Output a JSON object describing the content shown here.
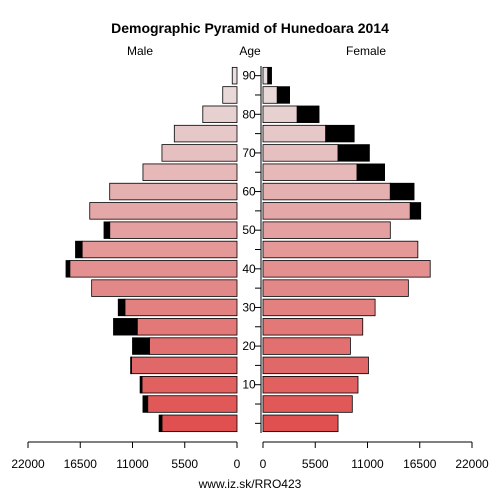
{
  "title": "Demographic Pyramid of Hunedoara 2014",
  "header": {
    "male": "Male",
    "age": "Age",
    "female": "Female"
  },
  "footer": "www.iz.sk/RRO423",
  "chart_data": {
    "type": "bar",
    "orientation": "horizontal-pyramid",
    "title": "Demographic Pyramid of Hunedoara 2014",
    "age_groups": [
      "0-4",
      "5-9",
      "10-14",
      "15-19",
      "20-24",
      "25-29",
      "30-34",
      "35-39",
      "40-44",
      "45-49",
      "50-54",
      "55-59",
      "60-64",
      "65-69",
      "70-74",
      "75-79",
      "80-84",
      "85-89",
      "90+"
    ],
    "age_tick_labels": [
      "10",
      "20",
      "30",
      "40",
      "50",
      "60",
      "70",
      "80",
      "90"
    ],
    "value_tick_labels": {
      "male": [
        "22000",
        "16500",
        "11000",
        "5500",
        "0"
      ],
      "female": [
        "0",
        "5500",
        "11000",
        "16500",
        "22000"
      ]
    },
    "xlim": [
      0,
      22000
    ],
    "series": [
      {
        "name": "Male",
        "values": [
          8200,
          9900,
          10200,
          11200,
          11000,
          13000,
          12500,
          15300,
          18000,
          17000,
          14000,
          15500,
          13400,
          9900,
          7900,
          6600,
          3600,
          1500,
          500
        ],
        "opposite_sex_values": [
          7900,
          9400,
          10000,
          11100,
          9200,
          10500,
          11800,
          15300,
          17600,
          16300,
          13400,
          16600,
          15900,
          12800,
          11200,
          9600,
          5900,
          2800,
          900
        ]
      },
      {
        "name": "Female",
        "values": [
          7900,
          9400,
          10000,
          11100,
          9200,
          10500,
          11800,
          15300,
          17600,
          16300,
          13400,
          16600,
          15900,
          12800,
          11200,
          9600,
          5900,
          2800,
          900
        ],
        "opposite_sex_values": [
          8200,
          9900,
          10200,
          11200,
          11000,
          13000,
          12500,
          15300,
          18000,
          17000,
          14000,
          15500,
          13400,
          9900,
          7900,
          6600,
          3600,
          1500,
          500
        ]
      }
    ],
    "notes_on_encoding": "black segment at outer end of a bar = excess over the opposite sex",
    "colors": {
      "young": "#e05050",
      "old": "#e8e0e0",
      "excess": "#000000"
    }
  }
}
